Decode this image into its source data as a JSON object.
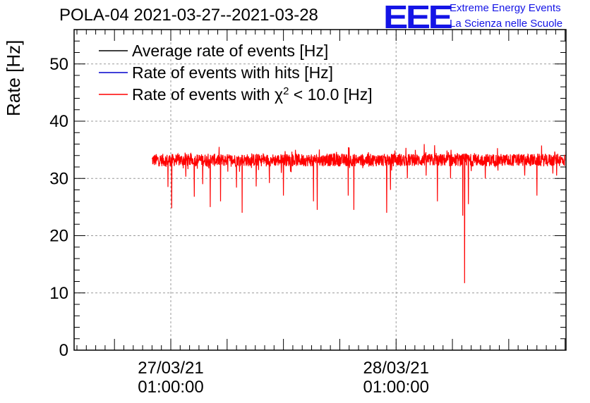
{
  "header": {
    "title": "POLA-04 2021-03-27--2021-03-28",
    "logo_text": "EEE",
    "logo_line1": "Extreme Energy Events",
    "logo_line2": "La Scienza nelle Scuole"
  },
  "colors": {
    "logo": "#1414e6",
    "average": "#000000",
    "hits": "#0000cc",
    "chi2": "#ff0000",
    "grid": "#9a9a9a"
  },
  "chart_data": {
    "type": "line",
    "title": "POLA-04 2021-03-27--2021-03-28",
    "xlabel": "",
    "ylabel": "Rate [Hz]",
    "ylim": [
      0,
      56
    ],
    "yticks": [
      0,
      10,
      20,
      30,
      40,
      50
    ],
    "xlim_hours": [
      -10.3,
      42.1
    ],
    "xticks": [
      {
        "hours": 0,
        "label_line1": "27/03/21",
        "label_line2": "01:00:00"
      },
      {
        "hours": 24,
        "label_line1": "28/03/21",
        "label_line2": "01:00:00"
      }
    ],
    "grid": true,
    "legend_position": "top-left",
    "legend": [
      {
        "label": "Average rate of events [Hz]",
        "color": "#000000"
      },
      {
        "label": "Rate of events with hits [Hz]",
        "color": "#0000cc"
      },
      {
        "label_prefix": "Rate of events with ",
        "label_symbol": "χ",
        "label_sup": "2",
        "label_suffix": " < 10.0 [Hz]",
        "color": "#ff0000"
      }
    ],
    "series": [
      {
        "name": "Rate of events with chi2 < 10.0 [Hz]",
        "color": "#ff0000",
        "x_range_hours": [
          -2.0,
          42.0
        ],
        "baseline": 33.2,
        "noise_amplitude": 1.1,
        "dips": [
          {
            "hours": -0.3,
            "value": 28.5
          },
          {
            "hours": 0.1,
            "value": 24.8
          },
          {
            "hours": 1.6,
            "value": 30.3
          },
          {
            "hours": 2.5,
            "value": 26.8
          },
          {
            "hours": 3.4,
            "value": 29.0
          },
          {
            "hours": 4.2,
            "value": 25.0
          },
          {
            "hours": 5.3,
            "value": 26.0
          },
          {
            "hours": 7.0,
            "value": 28.4
          },
          {
            "hours": 7.6,
            "value": 24.0
          },
          {
            "hours": 9.1,
            "value": 28.6
          },
          {
            "hours": 10.5,
            "value": 29.2
          },
          {
            "hours": 12.0,
            "value": 27.0
          },
          {
            "hours": 15.2,
            "value": 26.0
          },
          {
            "hours": 15.6,
            "value": 24.5
          },
          {
            "hours": 18.9,
            "value": 27.0
          },
          {
            "hours": 19.5,
            "value": 24.5
          },
          {
            "hours": 23.0,
            "value": 24.0
          },
          {
            "hours": 23.4,
            "value": 28.0
          },
          {
            "hours": 25.2,
            "value": 30.0
          },
          {
            "hours": 27.2,
            "value": 30.5
          },
          {
            "hours": 28.4,
            "value": 26.0
          },
          {
            "hours": 29.8,
            "value": 30.0
          },
          {
            "hours": 31.1,
            "value": 23.5
          },
          {
            "hours": 31.3,
            "value": 11.7
          },
          {
            "hours": 31.7,
            "value": 25.5
          },
          {
            "hours": 33.5,
            "value": 30.0
          },
          {
            "hours": 37.7,
            "value": 30.5
          },
          {
            "hours": 39.0,
            "value": 27.0
          },
          {
            "hours": 41.1,
            "value": 30.5
          }
        ],
        "peaks": [
          {
            "hours": 27.0,
            "value": 36.0
          },
          {
            "hours": 28.1,
            "value": 35.8
          },
          {
            "hours": 19.0,
            "value": 35.4
          },
          {
            "hours": 34.8,
            "value": 35.3
          }
        ]
      }
    ]
  }
}
